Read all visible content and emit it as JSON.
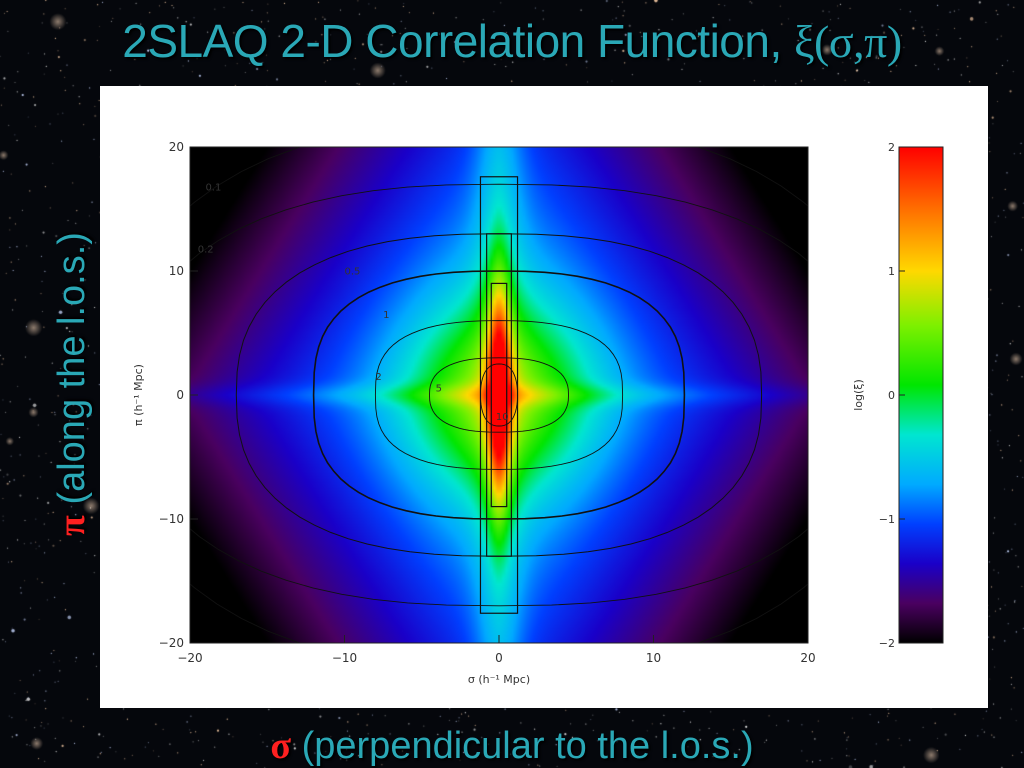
{
  "slide": {
    "title": "2SLAQ 2-D Correlation Function, ",
    "title_symbol": "ξ(σ,π)",
    "y_side_symbol": "π",
    "y_side_text": " (along the l.o.s.)",
    "x_side_symbol": "σ",
    "x_side_text": " (perpendicular to the l.o.s.)"
  },
  "colors": {
    "title": "#2aa8b6",
    "symbol": "#ff2020",
    "background": "#05070c"
  },
  "chart_data": {
    "type": "heatmap",
    "title": "",
    "xlabel": "σ (h⁻¹ Mpc)",
    "ylabel": "π (h⁻¹ Mpc)",
    "xlim": [
      -20,
      20
    ],
    "ylim": [
      -20,
      20
    ],
    "x_ticks": [
      "−20",
      "−10",
      "0",
      "10",
      "20"
    ],
    "y_ticks": [
      "20",
      "10",
      "0",
      "−10",
      "−20"
    ],
    "colorbar": {
      "label": "log(ξ)",
      "range": [
        -2,
        2
      ],
      "ticks": [
        "2",
        "1",
        "0",
        "−1",
        "−2"
      ],
      "colormap": "rainbow"
    },
    "contour_levels": [
      0.1,
      0.2,
      0.5,
      1,
      2,
      5,
      10
    ],
    "contour_labels": [
      "0.1",
      "0.2",
      "0.5",
      "1",
      "2",
      "5",
      "10"
    ]
  }
}
